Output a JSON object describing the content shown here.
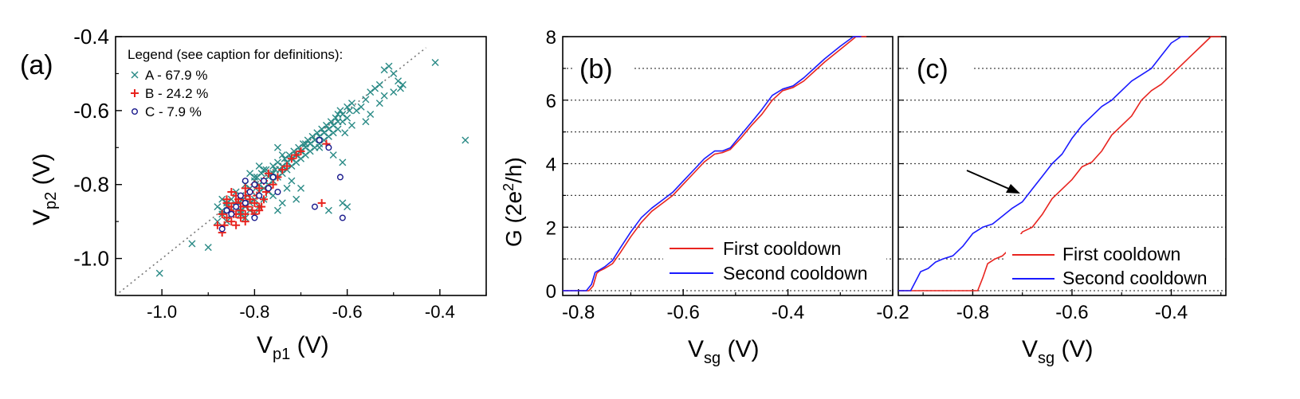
{
  "chart_data": [
    {
      "panel": "(a)",
      "type": "scatter",
      "xlabel": {
        "main": "V",
        "sub": "p1",
        "unit": " (V)"
      },
      "ylabel": {
        "main": "V",
        "sub": "p2",
        "unit": " (V)"
      },
      "xlim": [
        -1.1,
        -0.3
      ],
      "ylim": [
        -1.1,
        -0.4
      ],
      "xticks": [
        "-1.0",
        "-0.8",
        "-0.6",
        "-0.4"
      ],
      "xtick_values": [
        -1.0,
        -0.8,
        -0.6,
        -0.4
      ],
      "yticks": [
        "-1.0",
        "-0.8",
        "-0.6",
        "-0.4"
      ],
      "ytick_values": [
        -1.0,
        -0.8,
        -0.6,
        -0.4
      ],
      "legend_title": "Legend (see caption for definitions):",
      "legend_placement": "top-left",
      "reference_line": {
        "x": [
          -1.1,
          -0.43
        ],
        "y": [
          -1.1,
          -0.43
        ],
        "style": "dotted"
      },
      "series": [
        {
          "name": "A - 67.9 %",
          "marker": "x",
          "color": "#2a8a86",
          "x": [
            -1.005,
            -0.935,
            -0.9,
            -0.88,
            -0.87,
            -0.87,
            -0.86,
            -0.86,
            -0.855,
            -0.85,
            -0.85,
            -0.84,
            -0.84,
            -0.835,
            -0.83,
            -0.83,
            -0.825,
            -0.82,
            -0.82,
            -0.815,
            -0.81,
            -0.81,
            -0.805,
            -0.8,
            -0.8,
            -0.795,
            -0.79,
            -0.79,
            -0.785,
            -0.78,
            -0.78,
            -0.775,
            -0.77,
            -0.77,
            -0.765,
            -0.76,
            -0.76,
            -0.755,
            -0.75,
            -0.75,
            -0.745,
            -0.74,
            -0.74,
            -0.735,
            -0.73,
            -0.73,
            -0.725,
            -0.72,
            -0.72,
            -0.715,
            -0.71,
            -0.71,
            -0.705,
            -0.7,
            -0.7,
            -0.695,
            -0.69,
            -0.69,
            -0.685,
            -0.68,
            -0.68,
            -0.675,
            -0.67,
            -0.67,
            -0.665,
            -0.66,
            -0.66,
            -0.655,
            -0.65,
            -0.65,
            -0.645,
            -0.64,
            -0.64,
            -0.635,
            -0.63,
            -0.63,
            -0.625,
            -0.62,
            -0.62,
            -0.615,
            -0.61,
            -0.61,
            -0.6,
            -0.6,
            -0.595,
            -0.59,
            -0.58,
            -0.57,
            -0.56,
            -0.55,
            -0.54,
            -0.53,
            -0.52,
            -0.51,
            -0.5,
            -0.49,
            -0.48,
            -0.41,
            -0.345,
            -0.6,
            -0.61,
            -0.64,
            -0.74,
            -0.75,
            -0.76,
            -0.7,
            -0.71,
            -0.72,
            -0.73,
            -0.78,
            -0.79,
            -0.8,
            -0.81,
            -0.82,
            -0.83,
            -0.84,
            -0.85,
            -0.86,
            -0.87,
            -0.88,
            -0.77,
            -0.76,
            -0.79,
            -0.78,
            -0.8,
            -0.81,
            -0.77,
            -0.75,
            -0.74,
            -0.73,
            -0.69,
            -0.66,
            -0.63,
            -0.61,
            -0.605,
            -0.59,
            -0.56,
            -0.55,
            -0.53,
            -0.52,
            -0.5,
            -0.485,
            -0.62
          ],
          "y": [
            -1.04,
            -0.96,
            -0.97,
            -0.9,
            -0.88,
            -0.87,
            -0.9,
            -0.85,
            -0.87,
            -0.88,
            -0.84,
            -0.86,
            -0.82,
            -0.85,
            -0.87,
            -0.83,
            -0.84,
            -0.86,
            -0.8,
            -0.83,
            -0.85,
            -0.81,
            -0.82,
            -0.79,
            -0.84,
            -0.78,
            -0.82,
            -0.8,
            -0.77,
            -0.81,
            -0.79,
            -0.76,
            -0.8,
            -0.78,
            -0.77,
            -0.75,
            -0.79,
            -0.76,
            -0.74,
            -0.78,
            -0.76,
            -0.75,
            -0.77,
            -0.73,
            -0.74,
            -0.76,
            -0.72,
            -0.73,
            -0.75,
            -0.71,
            -0.72,
            -0.74,
            -0.7,
            -0.71,
            -0.73,
            -0.69,
            -0.7,
            -0.72,
            -0.68,
            -0.69,
            -0.71,
            -0.67,
            -0.68,
            -0.7,
            -0.66,
            -0.67,
            -0.69,
            -0.65,
            -0.66,
            -0.68,
            -0.64,
            -0.65,
            -0.67,
            -0.63,
            -0.64,
            -0.66,
            -0.62,
            -0.61,
            -0.65,
            -0.6,
            -0.61,
            -0.63,
            -0.59,
            -0.62,
            -0.6,
            -0.58,
            -0.6,
            -0.59,
            -0.57,
            -0.55,
            -0.54,
            -0.53,
            -0.49,
            -0.48,
            -0.5,
            -0.52,
            -0.53,
            -0.47,
            -0.68,
            -0.86,
            -0.85,
            -0.87,
            -0.85,
            -0.87,
            -0.83,
            -0.81,
            -0.84,
            -0.79,
            -0.81,
            -0.84,
            -0.86,
            -0.88,
            -0.87,
            -0.89,
            -0.88,
            -0.86,
            -0.88,
            -0.86,
            -0.84,
            -0.86,
            -0.82,
            -0.77,
            -0.75,
            -0.76,
            -0.78,
            -0.77,
            -0.8,
            -0.7,
            -0.72,
            -0.74,
            -0.69,
            -0.7,
            -0.72,
            -0.74,
            -0.66,
            -0.64,
            -0.63,
            -0.61,
            -0.58,
            -0.56,
            -0.55,
            -0.54,
            -0.63
          ]
        },
        {
          "name": "B - 24.2 %",
          "marker": "+",
          "color": "#e8241f",
          "x": [
            -0.87,
            -0.865,
            -0.86,
            -0.855,
            -0.85,
            -0.85,
            -0.845,
            -0.84,
            -0.84,
            -0.835,
            -0.83,
            -0.83,
            -0.825,
            -0.82,
            -0.82,
            -0.815,
            -0.81,
            -0.81,
            -0.805,
            -0.8,
            -0.8,
            -0.795,
            -0.79,
            -0.785,
            -0.78,
            -0.78,
            -0.775,
            -0.77,
            -0.76,
            -0.75,
            -0.74,
            -0.73,
            -0.72,
            -0.71,
            -0.7,
            -0.86,
            -0.85,
            -0.84,
            -0.83,
            -0.82,
            -0.81,
            -0.8,
            -0.79,
            -0.655,
            -0.645,
            -0.87,
            -0.88,
            -0.86,
            -0.84,
            -0.82,
            -0.79,
            -0.77
          ],
          "y": [
            -0.93,
            -0.91,
            -0.89,
            -0.87,
            -0.9,
            -0.86,
            -0.88,
            -0.85,
            -0.91,
            -0.84,
            -0.87,
            -0.89,
            -0.85,
            -0.83,
            -0.88,
            -0.86,
            -0.84,
            -0.82,
            -0.87,
            -0.85,
            -0.8,
            -0.83,
            -0.81,
            -0.86,
            -0.79,
            -0.84,
            -0.82,
            -0.77,
            -0.8,
            -0.78,
            -0.76,
            -0.75,
            -0.73,
            -0.72,
            -0.71,
            -0.84,
            -0.82,
            -0.88,
            -0.86,
            -0.9,
            -0.84,
            -0.88,
            -0.86,
            -0.85,
            -0.69,
            -0.88,
            -0.91,
            -0.85,
            -0.83,
            -0.81,
            -0.87,
            -0.81
          ]
        },
        {
          "name": "C - 7.9 %",
          "marker": "o",
          "color": "#1a1a8c",
          "x": [
            -0.87,
            -0.85,
            -0.84,
            -0.83,
            -0.82,
            -0.81,
            -0.8,
            -0.79,
            -0.78,
            -0.77,
            -0.76,
            -0.75,
            -0.67,
            -0.66,
            -0.64,
            -0.615,
            -0.61,
            -0.86,
            -0.8,
            -0.82
          ],
          "y": [
            -0.92,
            -0.88,
            -0.86,
            -0.83,
            -0.85,
            -0.82,
            -0.8,
            -0.83,
            -0.79,
            -0.81,
            -0.78,
            -0.82,
            -0.86,
            -0.68,
            -0.7,
            -0.78,
            -0.89,
            -0.87,
            -0.89,
            -0.79
          ]
        }
      ]
    },
    {
      "panel": "(b)",
      "type": "line",
      "xlabel": {
        "main": "V",
        "sub": "sg",
        "unit": " (V)"
      },
      "ylabel": {
        "main": "G (2e",
        "sup": "2",
        "rest": "/h)"
      },
      "xlim": [
        -0.83,
        -0.2
      ],
      "ylim": [
        -0.15,
        8
      ],
      "xticks": [
        "-0.8",
        "-0.6",
        "-0.4",
        "-0.2"
      ],
      "xtick_values": [
        -0.8,
        -0.6,
        -0.4,
        -0.2
      ],
      "yticks": [
        "0",
        "2",
        "4",
        "6",
        "8"
      ],
      "ytick_values": [
        0,
        2,
        4,
        6,
        8
      ],
      "dotted_gridlines_y": [
        0,
        1,
        2,
        3,
        4,
        5,
        6,
        7
      ],
      "legend_placement": "bottom-right",
      "series": [
        {
          "name": "First cooldown",
          "color": "#e8241f",
          "x": [
            -0.83,
            -0.78,
            -0.772,
            -0.765,
            -0.76,
            -0.75,
            -0.735,
            -0.72,
            -0.7,
            -0.68,
            -0.66,
            -0.64,
            -0.62,
            -0.6,
            -0.58,
            -0.56,
            -0.54,
            -0.525,
            -0.51,
            -0.49,
            -0.47,
            -0.45,
            -0.43,
            -0.41,
            -0.39,
            -0.37,
            -0.35,
            -0.33,
            -0.3,
            -0.27,
            -0.25
          ],
          "y": [
            0,
            0,
            0.15,
            0.55,
            0.62,
            0.7,
            0.85,
            1.2,
            1.7,
            2.15,
            2.5,
            2.75,
            3.0,
            3.35,
            3.7,
            4.05,
            4.3,
            4.35,
            4.45,
            4.8,
            5.2,
            5.55,
            6.0,
            6.3,
            6.4,
            6.6,
            6.9,
            7.2,
            7.6,
            8.0,
            8.0
          ]
        },
        {
          "name": "Second cooldown",
          "color": "#1a1aff",
          "x": [
            -0.83,
            -0.785,
            -0.775,
            -0.768,
            -0.76,
            -0.75,
            -0.735,
            -0.72,
            -0.7,
            -0.68,
            -0.66,
            -0.64,
            -0.62,
            -0.6,
            -0.58,
            -0.56,
            -0.54,
            -0.525,
            -0.51,
            -0.49,
            -0.47,
            -0.45,
            -0.43,
            -0.41,
            -0.39,
            -0.37,
            -0.35,
            -0.33,
            -0.3,
            -0.275,
            -0.26
          ],
          "y": [
            0,
            0,
            0.2,
            0.58,
            0.65,
            0.75,
            0.95,
            1.35,
            1.85,
            2.3,
            2.6,
            2.85,
            3.1,
            3.45,
            3.8,
            4.15,
            4.4,
            4.4,
            4.5,
            4.9,
            5.3,
            5.7,
            6.15,
            6.35,
            6.45,
            6.7,
            7.0,
            7.3,
            7.7,
            8.0,
            8.0
          ]
        }
      ]
    },
    {
      "panel": "(c)",
      "type": "line",
      "xlabel": {
        "main": "V",
        "sub": "sg",
        "unit": " (V)"
      },
      "xlim": [
        -0.95,
        -0.29
      ],
      "ylim": [
        -0.15,
        8
      ],
      "xticks": [
        "-0.8",
        "-0.6",
        "-0.4"
      ],
      "xtick_values": [
        -0.8,
        -0.6,
        -0.4
      ],
      "dotted_gridlines_y": [
        0,
        1,
        2,
        3,
        4,
        5,
        6,
        7
      ],
      "legend_placement": "bottom-right",
      "annotation": "arrow pointing to second cooldown curve near G = 3",
      "series": [
        {
          "name": "First cooldown",
          "color": "#e8241f",
          "x": [
            -0.95,
            -0.79,
            -0.78,
            -0.77,
            -0.755,
            -0.74,
            -0.72,
            -0.7,
            -0.68,
            -0.66,
            -0.64,
            -0.62,
            -0.6,
            -0.58,
            -0.56,
            -0.54,
            -0.52,
            -0.5,
            -0.48,
            -0.46,
            -0.44,
            -0.42,
            -0.4,
            -0.38,
            -0.36,
            -0.34,
            -0.32,
            -0.3
          ],
          "y": [
            0,
            0,
            0.4,
            0.85,
            1.0,
            1.1,
            1.4,
            1.85,
            2.0,
            2.4,
            2.9,
            3.2,
            3.5,
            3.9,
            4.05,
            4.4,
            4.9,
            5.2,
            5.5,
            6.0,
            6.3,
            6.5,
            6.8,
            7.1,
            7.4,
            7.7,
            8.0,
            8.0
          ]
        },
        {
          "name": "Second cooldown",
          "color": "#1a1aff",
          "x": [
            -0.95,
            -0.925,
            -0.915,
            -0.905,
            -0.89,
            -0.875,
            -0.86,
            -0.84,
            -0.82,
            -0.8,
            -0.78,
            -0.76,
            -0.74,
            -0.72,
            -0.7,
            -0.68,
            -0.66,
            -0.64,
            -0.62,
            -0.6,
            -0.58,
            -0.56,
            -0.54,
            -0.52,
            -0.5,
            -0.48,
            -0.46,
            -0.44,
            -0.42,
            -0.4,
            -0.38,
            -0.365
          ],
          "y": [
            0,
            0,
            0.3,
            0.6,
            0.7,
            0.9,
            1.0,
            1.1,
            1.4,
            1.8,
            2.0,
            2.1,
            2.35,
            2.6,
            2.8,
            3.2,
            3.6,
            4.0,
            4.3,
            4.8,
            5.2,
            5.5,
            5.8,
            6.0,
            6.3,
            6.6,
            6.8,
            7.0,
            7.4,
            7.8,
            8.0,
            8.0
          ]
        }
      ]
    }
  ],
  "panel_labels": {
    "a": "(a)",
    "b": "(b)",
    "c": "(c)"
  },
  "legend_bc": {
    "first": "First cooldown",
    "second": "Second cooldown"
  },
  "colors": {
    "A": "#2a8a86",
    "B": "#e8241f",
    "C": "#1a1a8c",
    "first": "#e8241f",
    "second": "#1a1aff"
  }
}
